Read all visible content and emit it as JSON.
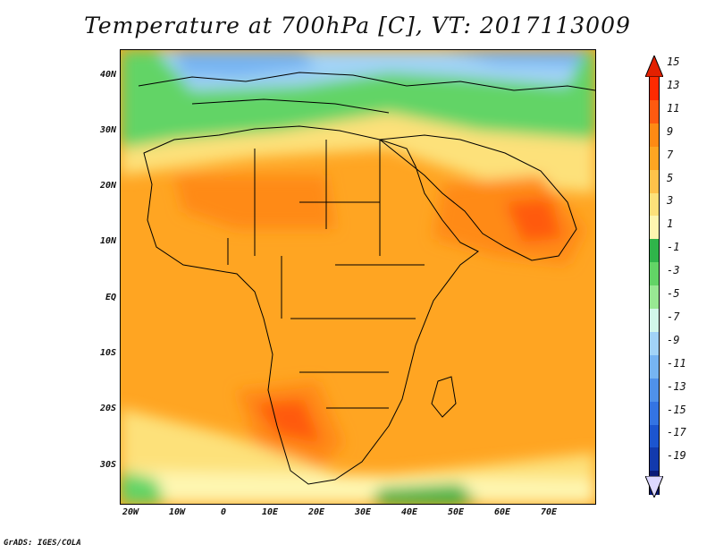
{
  "title": "Temperature at 700hPa [C], VT: 2017113009",
  "credit": "GrADS: IGES/COLA",
  "map": {
    "lat_ticks": [
      "40N",
      "30N",
      "20N",
      "10N",
      "EQ",
      "10S",
      "20S",
      "30S"
    ],
    "lon_ticks": [
      "20W",
      "10W",
      "0",
      "10E",
      "20E",
      "30E",
      "40E",
      "50E",
      "60E",
      "70E"
    ]
  },
  "colorbar": {
    "labels": [
      "15",
      "13",
      "11",
      "9",
      "7",
      "5",
      "3",
      "1",
      "-1",
      "-3",
      "-5",
      "-7",
      "-9",
      "-11",
      "-13",
      "-15",
      "-17",
      "-19"
    ],
    "colors": [
      "#ff2a00",
      "#ff5a10",
      "#ff8a14",
      "#ffa522",
      "#ffc24a",
      "#fde17a",
      "#fef6b0",
      "#2fb44a",
      "#62d466",
      "#98e893",
      "#d2f7ea",
      "#a2d3f7",
      "#76b4f2",
      "#4f91ea",
      "#3474e3",
      "#1c55cf",
      "#123aad",
      "#0a1a78"
    ],
    "top_color": "#e32000",
    "bottom_color": "#ddd8ff"
  }
}
